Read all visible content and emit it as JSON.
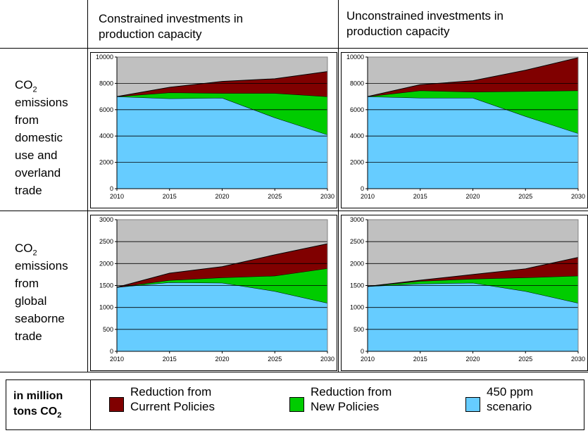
{
  "columns": [
    {
      "line1": "Constrained investments in",
      "line2": "production capacity"
    },
    {
      "line1": "Unconstrained investments in",
      "line2": "production capacity"
    }
  ],
  "rows": [
    {
      "lines": [
        "CO",
        "emissions",
        "from",
        "domestic",
        "use and",
        "overland",
        "trade"
      ],
      "sub": "2"
    },
    {
      "lines": [
        "CO",
        "emissions",
        "from",
        "global",
        "seaborne",
        "trade"
      ],
      "sub": "2"
    }
  ],
  "legend": {
    "unit_line1": "in million",
    "unit_line2": "tons CO",
    "unit_sub": "2",
    "items": [
      {
        "line1": "Reduction from",
        "line2": "Current Policies",
        "color": "#800000"
      },
      {
        "line1": "Reduction from",
        "line2": "New Policies",
        "color": "#00cc00"
      },
      {
        "line1": "450 ppm",
        "line2": "scenario",
        "color": "#66ccff"
      }
    ]
  },
  "chart_data": [
    {
      "type": "area",
      "x": [
        2010,
        2015,
        2020,
        2025,
        2030
      ],
      "ylim": [
        0,
        10000
      ],
      "yticks": [
        0,
        2000,
        4000,
        6000,
        8000,
        10000
      ],
      "series": [
        {
          "name": "450 ppm scenario",
          "values": [
            7000,
            6850,
            6900,
            5400,
            4100
          ]
        },
        {
          "name": "Reduction from New Policies",
          "values": [
            0,
            450,
            350,
            1850,
            2900
          ]
        },
        {
          "name": "Reduction from Current Policies",
          "values": [
            0,
            400,
            900,
            1100,
            1900
          ]
        }
      ]
    },
    {
      "type": "area",
      "x": [
        2010,
        2015,
        2020,
        2025,
        2030
      ],
      "ylim": [
        0,
        10000
      ],
      "yticks": [
        0,
        2000,
        4000,
        6000,
        8000,
        10000
      ],
      "series": [
        {
          "name": "450 ppm scenario",
          "values": [
            7000,
            6900,
            6900,
            5500,
            4200
          ]
        },
        {
          "name": "Reduction from New Policies",
          "values": [
            0,
            550,
            450,
            1900,
            3250
          ]
        },
        {
          "name": "Reduction from Current Policies",
          "values": [
            0,
            450,
            850,
            1600,
            2500
          ]
        }
      ]
    },
    {
      "type": "area",
      "x": [
        2010,
        2015,
        2020,
        2025,
        2030
      ],
      "ylim": [
        0,
        3000
      ],
      "yticks": [
        0,
        500,
        1000,
        1500,
        2000,
        2500,
        3000
      ],
      "series": [
        {
          "name": "450 ppm scenario",
          "values": [
            1460,
            1570,
            1560,
            1370,
            1100
          ]
        },
        {
          "name": "Reduction from New Policies",
          "values": [
            0,
            50,
            120,
            350,
            790
          ]
        },
        {
          "name": "Reduction from Current Policies",
          "values": [
            0,
            160,
            250,
            480,
            560
          ]
        }
      ]
    },
    {
      "type": "area",
      "x": [
        2010,
        2015,
        2020,
        2025,
        2030
      ],
      "ylim": [
        0,
        3000
      ],
      "yticks": [
        0,
        500,
        1000,
        1500,
        2000,
        2500,
        3000
      ],
      "series": [
        {
          "name": "450 ppm scenario",
          "values": [
            1480,
            1540,
            1560,
            1370,
            1100
          ]
        },
        {
          "name": "Reduction from New Policies",
          "values": [
            0,
            60,
            90,
            310,
            620
          ]
        },
        {
          "name": "Reduction from Current Policies",
          "values": [
            0,
            20,
            100,
            200,
            420
          ]
        }
      ]
    }
  ]
}
